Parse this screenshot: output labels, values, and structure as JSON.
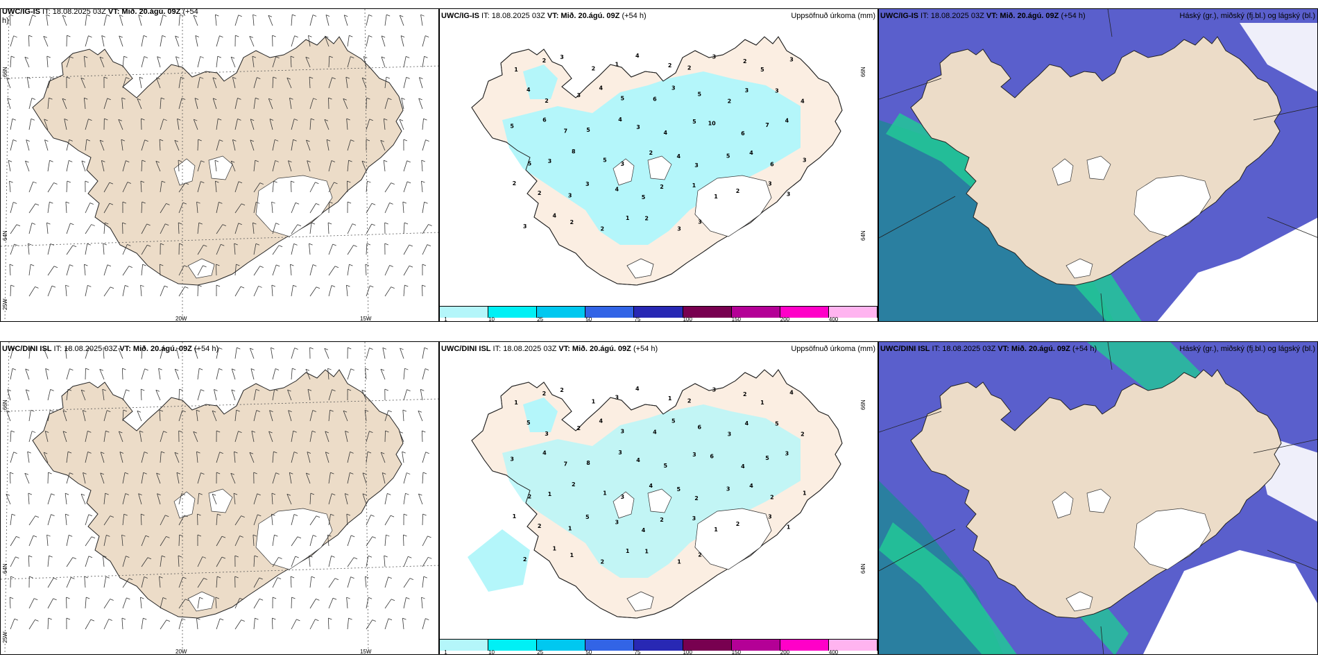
{
  "rows": [
    {
      "wind": {
        "title_model": "UWC/IG-IS",
        "title_it": " IT: 18.08.2025 03Z ",
        "title_vt": "VT: Mið. 20.ágú. 09Z",
        "title_lead": " (+54",
        "title_wrap": "h)"
      },
      "precip": {
        "title_model": "UWC/IG-IS",
        "title_it": " IT: 18.08.2025 03Z ",
        "title_vt": "VT: Mið. 20.ágú. 09Z",
        "title_lead": " (+54 h)",
        "title_right": "Uppsöfnuð úrkoma (mm)"
      },
      "cloud": {
        "title_model": "UWC/IG-IS",
        "title_it": " IT: 18.08.2025 03Z ",
        "title_vt": "VT: Mið. 20.ágú. 09Z",
        "title_lead": " (+54 h)",
        "title_right": "Háský (gr.), miðský (fj.bl.) og lágský (bl.)"
      },
      "precip_numbers": [
        "1",
        "2",
        "3",
        "2",
        "1",
        "4",
        "2",
        "2",
        "3",
        "2",
        "5",
        "3",
        "4",
        "2",
        "3",
        "4",
        "5",
        "6",
        "3",
        "5",
        "2",
        "3",
        "3",
        "4",
        "5",
        "6",
        "7",
        "5",
        "4",
        "3",
        "4",
        "5",
        "10",
        "6",
        "7",
        "4",
        "5",
        "3",
        "8",
        "5",
        "3",
        "2",
        "4",
        "3",
        "5",
        "4",
        "6",
        "3",
        "2",
        "2",
        "3",
        "3",
        "4",
        "5",
        "2",
        "1",
        "1",
        "2",
        "3",
        "3",
        "3",
        "4",
        "2",
        "2",
        "1",
        "2",
        "3",
        "3"
      ]
    },
    {
      "wind": {
        "title_model": "UWC/DINI ISL",
        "title_it": " IT: 18.08.2025 03Z ",
        "title_vt": "VT: Mið. 20.ágú. 09Z",
        "title_lead": " (+54 h)",
        "title_wrap": ""
      },
      "precip": {
        "title_model": "UWC/DINI ISL",
        "title_it": " IT: 18.08.2025 03Z ",
        "title_vt": "VT: Mið. 20.ágú. 09Z",
        "title_lead": " (+54 h)",
        "title_right": "Uppsöfnuð úrkoma (mm)"
      },
      "cloud": {
        "title_model": "UWC/DINI ISL",
        "title_it": " IT: 18.08.2025 03Z ",
        "title_vt": "VT: Mið. 20.ágú. 09Z",
        "title_lead": " (+54 h)",
        "title_right": "Háský (gr.), miðský (fj.bl.) og lágský (bl.)"
      },
      "precip_numbers": [
        "1",
        "2",
        "2",
        "1",
        "3",
        "4",
        "1",
        "2",
        "3",
        "2",
        "1",
        "4",
        "5",
        "3",
        "2",
        "4",
        "3",
        "4",
        "5",
        "6",
        "3",
        "4",
        "5",
        "2",
        "3",
        "4",
        "7",
        "8",
        "3",
        "4",
        "5",
        "3",
        "6",
        "4",
        "5",
        "3",
        "2",
        "1",
        "2",
        "1",
        "3",
        "4",
        "5",
        "2",
        "3",
        "4",
        "2",
        "1",
        "1",
        "2",
        "1",
        "5",
        "3",
        "4",
        "2",
        "3",
        "1",
        "2",
        "3",
        "1",
        "2",
        "1",
        "1",
        "2",
        "1",
        "1",
        "1",
        "2"
      ]
    }
  ],
  "axis_labels": {
    "lon_20w": "20W",
    "lon_15w": "15W",
    "lat_66n": "66N",
    "lat_64n": "64N",
    "lon_25w": "25W"
  },
  "precip_legend": {
    "ticks": [
      "1",
      "10",
      "25",
      "50",
      "75",
      "100",
      "150",
      "200",
      "400"
    ],
    "colors": [
      "#b4f6fa",
      "#00f0f5",
      "#00c8f0",
      "#3264e6",
      "#2828b4",
      "#780050",
      "#b40096",
      "#ff00c8",
      "#ffb4f0"
    ]
  },
  "colors": {
    "land": "#ecdcc8",
    "land_light": "#fbeee2",
    "precip_light": "#b4f6fa",
    "cloud_high": "#5a5fcc",
    "cloud_mid": "#2a7fa0",
    "cloud_low": "#22c896"
  }
}
